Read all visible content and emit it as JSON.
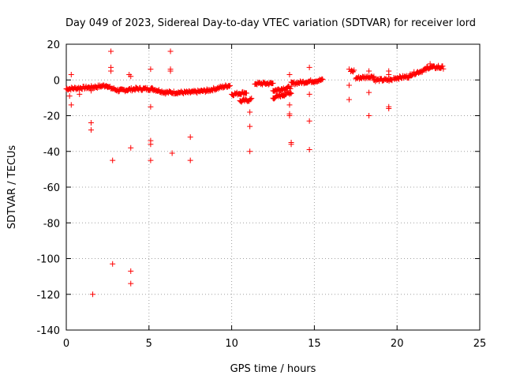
{
  "chart_data": {
    "type": "scatter",
    "title": "Day 049 of 2023, Sidereal Day-to-day VTEC variation (SDTVAR) for receiver lord",
    "xlabel": "GPS time / hours",
    "ylabel": "SDTVAR / TECUs",
    "xlim": [
      0,
      25
    ],
    "ylim": [
      -140,
      20
    ],
    "xticks": [
      0,
      5,
      10,
      15,
      20,
      25
    ],
    "yticks": [
      20,
      0,
      -20,
      -40,
      -60,
      -80,
      -100,
      -120,
      -140
    ],
    "grid": true,
    "marker": "+",
    "color": "#ff0000",
    "dense_segments": [
      {
        "x0": 0.0,
        "x1": 1.7,
        "y0": -5,
        "y1": -4
      },
      {
        "x0": 1.7,
        "x1": 2.5,
        "y0": -4,
        "y1": -3
      },
      {
        "x0": 2.5,
        "x1": 3.2,
        "y0": -4,
        "y1": -6
      },
      {
        "x0": 3.2,
        "x1": 4.2,
        "y0": -6,
        "y1": -5
      },
      {
        "x0": 4.2,
        "x1": 5.2,
        "y0": -5,
        "y1": -5
      },
      {
        "x0": 5.2,
        "x1": 6.0,
        "y0": -5,
        "y1": -7
      },
      {
        "x0": 6.0,
        "x1": 7.5,
        "y0": -7,
        "y1": -7
      },
      {
        "x0": 7.5,
        "x1": 8.5,
        "y0": -7,
        "y1": -6
      },
      {
        "x0": 8.5,
        "x1": 9.9,
        "y0": -6,
        "y1": -3
      },
      {
        "x0": 10.0,
        "x1": 10.9,
        "y0": -8,
        "y1": -7
      },
      {
        "x0": 10.5,
        "x1": 11.2,
        "y0": -12,
        "y1": -11
      },
      {
        "x0": 11.4,
        "x1": 12.5,
        "y0": -2,
        "y1": -2
      },
      {
        "x0": 12.5,
        "x1": 13.6,
        "y0": -10,
        "y1": -7
      },
      {
        "x0": 12.5,
        "x1": 13.6,
        "y0": -6,
        "y1": -4
      },
      {
        "x0": 13.6,
        "x1": 15.5,
        "y0": -2,
        "y1": 0
      },
      {
        "x0": 17.2,
        "x1": 17.4,
        "y0": 5,
        "y1": 5
      },
      {
        "x0": 17.5,
        "x1": 18.6,
        "y0": 1,
        "y1": 2
      },
      {
        "x0": 18.6,
        "x1": 19.7,
        "y0": 0,
        "y1": 0
      },
      {
        "x0": 19.8,
        "x1": 20.8,
        "y0": 1,
        "y1": 2
      },
      {
        "x0": 20.8,
        "x1": 21.8,
        "y0": 3,
        "y1": 6
      },
      {
        "x0": 21.8,
        "x1": 22.8,
        "y0": 7,
        "y1": 7
      }
    ],
    "outliers": [
      [
        0.3,
        3
      ],
      [
        0.2,
        -9
      ],
      [
        0.3,
        -14
      ],
      [
        0.8,
        -8
      ],
      [
        1.5,
        -6
      ],
      [
        1.5,
        -24
      ],
      [
        1.5,
        -28
      ],
      [
        1.6,
        -120
      ],
      [
        2.7,
        16
      ],
      [
        2.7,
        7
      ],
      [
        2.7,
        5
      ],
      [
        2.8,
        -45
      ],
      [
        2.8,
        -103
      ],
      [
        3.8,
        3
      ],
      [
        3.9,
        2
      ],
      [
        3.9,
        -38
      ],
      [
        3.9,
        -107
      ],
      [
        3.9,
        -114
      ],
      [
        5.1,
        6
      ],
      [
        5.1,
        -15
      ],
      [
        5.1,
        -34
      ],
      [
        5.1,
        -36
      ],
      [
        5.1,
        -45
      ],
      [
        6.3,
        16
      ],
      [
        6.3,
        6
      ],
      [
        6.3,
        5
      ],
      [
        6.4,
        -41
      ],
      [
        7.5,
        -32
      ],
      [
        7.5,
        -45
      ],
      [
        11.1,
        -18
      ],
      [
        11.1,
        -26
      ],
      [
        11.1,
        -40
      ],
      [
        13.5,
        3
      ],
      [
        13.5,
        -14
      ],
      [
        13.5,
        -19
      ],
      [
        13.5,
        -20
      ],
      [
        13.6,
        -35
      ],
      [
        13.6,
        -36
      ],
      [
        14.7,
        7
      ],
      [
        14.7,
        -8
      ],
      [
        14.7,
        -23
      ],
      [
        14.7,
        -39
      ],
      [
        17.1,
        6
      ],
      [
        17.1,
        -3
      ],
      [
        17.1,
        -11
      ],
      [
        18.3,
        5
      ],
      [
        18.3,
        -7
      ],
      [
        18.3,
        -20
      ],
      [
        19.5,
        5
      ],
      [
        19.5,
        3
      ],
      [
        19.5,
        -15
      ],
      [
        19.5,
        -16
      ],
      [
        22.0,
        9
      ],
      [
        22.5,
        8
      ]
    ]
  }
}
